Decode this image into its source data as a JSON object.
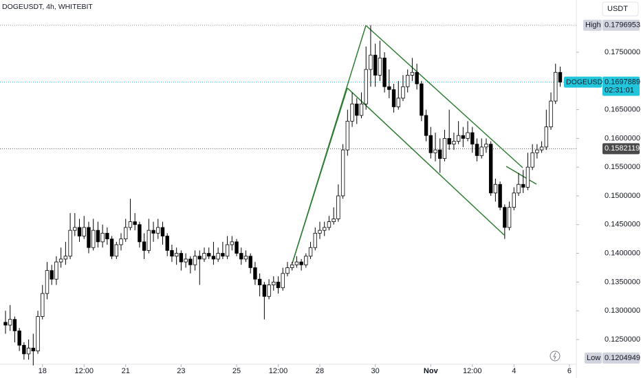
{
  "chart_data": {
    "type": "candlestick",
    "title": "DOGEUSDT, 4h, WHITEBIT",
    "currency": "USDT",
    "open": [
      0.128,
      0.1275,
      0.1285,
      0.1265,
      0.124,
      0.1225,
      0.1235,
      0.123,
      0.129,
      0.133,
      0.137,
      0.1355,
      0.1385,
      0.139,
      0.1395,
      0.144,
      0.1445,
      0.143,
      0.1445,
      0.141,
      0.144,
      0.142,
      0.1435,
      0.1425,
      0.1395,
      0.1415,
      0.1425,
      0.1445,
      0.1455,
      0.145,
      0.142,
      0.1405,
      0.144,
      0.1435,
      0.1445,
      0.143,
      0.1405,
      0.1395,
      0.14,
      0.1385,
      0.139,
      0.138,
      0.1395,
      0.139,
      0.14,
      0.1395,
      0.139,
      0.14,
      0.1395,
      0.1415,
      0.142,
      0.14,
      0.139,
      0.1395,
      0.1375,
      0.1355,
      0.1345,
      0.1325,
      0.1345,
      0.135,
      0.134,
      0.1365,
      0.1375,
      0.138,
      0.1385,
      0.138,
      0.1395,
      0.141,
      0.1435,
      0.144,
      0.1445,
      0.1455,
      0.146,
      0.15,
      0.158,
      0.163,
      0.166,
      0.164,
      0.166,
      0.172,
      0.1745,
      0.171,
      0.174,
      0.169,
      0.1685,
      0.1655,
      0.167,
      0.169,
      0.171,
      0.1715,
      0.1695,
      0.164,
      0.1605,
      0.1575,
      0.158,
      0.1565,
      0.16,
      0.159,
      0.1595,
      0.1605,
      0.16,
      0.161,
      0.159,
      0.157,
      0.1585,
      0.159,
      0.1505,
      0.152,
      0.148,
      0.1445,
      0.148,
      0.1505,
      0.152,
      0.1515,
      0.155,
      0.1575,
      0.158,
      0.1585,
      0.162,
      0.1665,
      0.1715
    ],
    "high": [
      0.13,
      0.131,
      0.129,
      0.127,
      0.1245,
      0.125,
      0.126,
      0.13,
      0.1345,
      0.1385,
      0.138,
      0.1395,
      0.141,
      0.142,
      0.147,
      0.147,
      0.146,
      0.1465,
      0.1455,
      0.146,
      0.1455,
      0.145,
      0.1445,
      0.143,
      0.142,
      0.1435,
      0.146,
      0.1495,
      0.147,
      0.1455,
      0.1435,
      0.146,
      0.1455,
      0.146,
      0.1455,
      0.1435,
      0.1415,
      0.141,
      0.1405,
      0.14,
      0.1395,
      0.1405,
      0.1405,
      0.141,
      0.141,
      0.142,
      0.141,
      0.142,
      0.143,
      0.143,
      0.1425,
      0.141,
      0.1405,
      0.14,
      0.1385,
      0.1365,
      0.135,
      0.1355,
      0.136,
      0.136,
      0.1375,
      0.1385,
      0.1385,
      0.1395,
      0.139,
      0.14,
      0.142,
      0.1445,
      0.1455,
      0.1455,
      0.1465,
      0.148,
      0.152,
      0.159,
      0.165,
      0.168,
      0.167,
      0.168,
      0.176,
      0.1797,
      0.1765,
      0.177,
      0.175,
      0.172,
      0.1695,
      0.17,
      0.171,
      0.172,
      0.174,
      0.173,
      0.17,
      0.165,
      0.162,
      0.161,
      0.16,
      0.1615,
      0.165,
      0.161,
      0.163,
      0.162,
      0.163,
      0.162,
      0.16,
      0.16,
      0.16,
      0.1595,
      0.153,
      0.1525,
      0.1485,
      0.149,
      0.1515,
      0.154,
      0.1545,
      0.1575,
      0.159,
      0.159,
      0.1595,
      0.165,
      0.168,
      0.173,
      0.1725
    ],
    "low": [
      0.126,
      0.1265,
      0.1245,
      0.123,
      0.1215,
      0.1215,
      0.1205,
      0.1225,
      0.1285,
      0.132,
      0.1345,
      0.1345,
      0.1375,
      0.138,
      0.139,
      0.143,
      0.142,
      0.1425,
      0.14,
      0.1405,
      0.141,
      0.141,
      0.1415,
      0.139,
      0.139,
      0.1405,
      0.142,
      0.144,
      0.144,
      0.141,
      0.139,
      0.14,
      0.142,
      0.1425,
      0.1415,
      0.1395,
      0.1385,
      0.138,
      0.137,
      0.1375,
      0.1365,
      0.137,
      0.1345,
      0.1385,
      0.139,
      0.138,
      0.1385,
      0.139,
      0.139,
      0.1405,
      0.1395,
      0.138,
      0.1385,
      0.1365,
      0.1345,
      0.1325,
      0.1285,
      0.132,
      0.1335,
      0.133,
      0.1335,
      0.136,
      0.137,
      0.1375,
      0.137,
      0.1375,
      0.139,
      0.1405,
      0.1425,
      0.143,
      0.144,
      0.145,
      0.1455,
      0.1495,
      0.157,
      0.162,
      0.1625,
      0.1635,
      0.165,
      0.169,
      0.169,
      0.17,
      0.168,
      0.167,
      0.1645,
      0.165,
      0.1665,
      0.168,
      0.17,
      0.1685,
      0.163,
      0.1595,
      0.1565,
      0.156,
      0.154,
      0.156,
      0.158,
      0.158,
      0.159,
      0.1585,
      0.1595,
      0.1575,
      0.156,
      0.1565,
      0.1575,
      0.15,
      0.149,
      0.1475,
      0.1425,
      0.144,
      0.1475,
      0.15,
      0.1505,
      0.151,
      0.1545,
      0.1565,
      0.1575,
      0.158,
      0.1615,
      0.166,
      0.169
    ],
    "close": [
      0.1275,
      0.1285,
      0.1265,
      0.124,
      0.1225,
      0.1235,
      0.123,
      0.129,
      0.133,
      0.137,
      0.1355,
      0.1385,
      0.139,
      0.1395,
      0.144,
      0.1445,
      0.143,
      0.1445,
      0.141,
      0.144,
      0.142,
      0.1435,
      0.1425,
      0.1395,
      0.1415,
      0.1425,
      0.1445,
      0.1455,
      0.145,
      0.142,
      0.1405,
      0.144,
      0.1435,
      0.1445,
      0.143,
      0.1405,
      0.1395,
      0.14,
      0.1385,
      0.139,
      0.138,
      0.1395,
      0.139,
      0.14,
      0.1395,
      0.139,
      0.14,
      0.1395,
      0.1415,
      0.142,
      0.14,
      0.139,
      0.1395,
      0.1375,
      0.1355,
      0.1345,
      0.1325,
      0.1345,
      0.135,
      0.134,
      0.1365,
      0.1375,
      0.138,
      0.1385,
      0.138,
      0.1395,
      0.141,
      0.1435,
      0.144,
      0.1445,
      0.1455,
      0.146,
      0.15,
      0.158,
      0.163,
      0.166,
      0.164,
      0.166,
      0.172,
      0.1745,
      0.171,
      0.174,
      0.169,
      0.1685,
      0.1655,
      0.167,
      0.169,
      0.171,
      0.1715,
      0.1695,
      0.164,
      0.1605,
      0.1575,
      0.158,
      0.1565,
      0.16,
      0.159,
      0.1595,
      0.1605,
      0.16,
      0.161,
      0.159,
      0.157,
      0.1585,
      0.159,
      0.1505,
      0.152,
      0.148,
      0.1445,
      0.148,
      0.1505,
      0.152,
      0.1515,
      0.155,
      0.1575,
      0.158,
      0.1585,
      0.162,
      0.1665,
      0.1715,
      0.1698
    ],
    "xlim": [
      -1.19,
      123.5
    ],
    "xticks": [
      {
        "value": 8,
        "label": "18"
      },
      {
        "value": 17,
        "label": "12:00"
      },
      {
        "value": 26,
        "label": "21"
      },
      {
        "value": 38,
        "label": "23"
      },
      {
        "value": 50,
        "label": "25"
      },
      {
        "value": 59,
        "label": "12:00"
      },
      {
        "value": 68,
        "label": "28"
      },
      {
        "value": 80,
        "label": "30"
      },
      {
        "value": 92,
        "label": "Nov"
      },
      {
        "value": 101,
        "label": "12:00"
      },
      {
        "value": 110,
        "label": "4"
      },
      {
        "value": 122,
        "label": "6"
      }
    ],
    "ylim": [
      0.12069,
      0.18409
    ],
    "yticks": [
      {
        "value": 0.125,
        "label": "0.1250000"
      },
      {
        "value": 0.13,
        "label": "0.1300000"
      },
      {
        "value": 0.135,
        "label": "0.1350000"
      },
      {
        "value": 0.14,
        "label": "0.1400000"
      },
      {
        "value": 0.145,
        "label": "0.1450000"
      },
      {
        "value": 0.15,
        "label": "0.1500000"
      },
      {
        "value": 0.155,
        "label": "0.1550000"
      },
      {
        "value": 0.16,
        "label": "0.1600000"
      },
      {
        "value": 0.165,
        "label": "0.1650000"
      },
      {
        "value": 0.175,
        "label": "0.1750000"
      }
    ],
    "high_marker": {
      "label": "High",
      "value": 0.1796953
    },
    "low_marker": {
      "label": "Low",
      "value": 0.1204949
    },
    "last_price": {
      "label": "DOGEUSDT",
      "value": 0.1697889,
      "countdown": "02:31:01"
    },
    "level": 0.1582119,
    "up_color": "#ffffff",
    "down_color": "#000000",
    "last_color": "#22c6dc"
  }
}
